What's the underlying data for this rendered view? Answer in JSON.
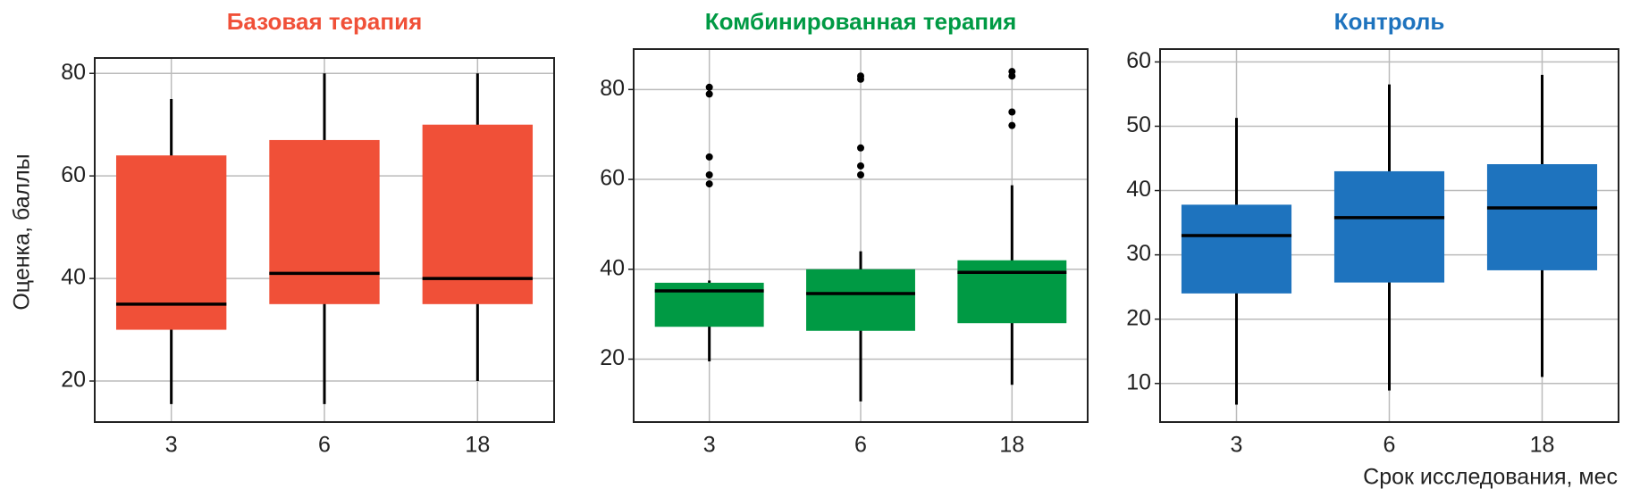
{
  "chart_data": [
    {
      "type": "box",
      "title": "Базовая терапия",
      "color": "#f05038",
      "ylabel": "Оценка, баллы",
      "categories": [
        "3",
        "6",
        "18"
      ],
      "boxes": [
        {
          "low": 15.5,
          "q1": 30,
          "median": 35,
          "q3": 64,
          "high": 75,
          "outliers": []
        },
        {
          "low": 15.5,
          "q1": 35,
          "median": 41,
          "q3": 67,
          "high": 80,
          "outliers": []
        },
        {
          "low": 20,
          "q1": 35,
          "median": 40,
          "q3": 70,
          "high": 80,
          "outliers": []
        }
      ],
      "ylim": [
        12,
        83
      ],
      "yticks": [
        20,
        40,
        60,
        80
      ],
      "grid": true
    },
    {
      "type": "box",
      "title": "Комбинированная терапия",
      "color": "#009a44",
      "categories": [
        "3",
        "6",
        "18"
      ],
      "boxes": [
        {
          "low": 19.5,
          "q1": 27.2,
          "median": 35.2,
          "q3": 37,
          "high": 37.5,
          "outliers": [
            80.5,
            79,
            65,
            61,
            59
          ]
        },
        {
          "low": 10.6,
          "q1": 26.3,
          "median": 34.6,
          "q3": 40,
          "high": 44,
          "outliers": [
            83,
            82.3,
            67,
            63,
            61
          ]
        },
        {
          "low": 14.3,
          "q1": 28,
          "median": 39.3,
          "q3": 42,
          "high": 58.7,
          "outliers": [
            84,
            83,
            75,
            72
          ]
        }
      ],
      "ylim": [
        6,
        89
      ],
      "yticks": [
        20,
        40,
        60,
        80
      ],
      "grid": true
    },
    {
      "type": "box",
      "title": "Контроль",
      "color": "#1e73be",
      "xlabel": "Срок исследования, мес",
      "categories": [
        "3",
        "6",
        "18"
      ],
      "boxes": [
        {
          "low": 6.7,
          "q1": 24,
          "median": 33,
          "q3": 37.8,
          "high": 51.3,
          "outliers": []
        },
        {
          "low": 8.9,
          "q1": 25.7,
          "median": 35.8,
          "q3": 43,
          "high": 56.5,
          "outliers": []
        },
        {
          "low": 11,
          "q1": 27.6,
          "median": 37.3,
          "q3": 44.1,
          "high": 58,
          "outliers": []
        }
      ],
      "ylim": [
        4,
        62
      ],
      "yticks": [
        10,
        20,
        30,
        40,
        50,
        60
      ],
      "grid": true
    }
  ]
}
